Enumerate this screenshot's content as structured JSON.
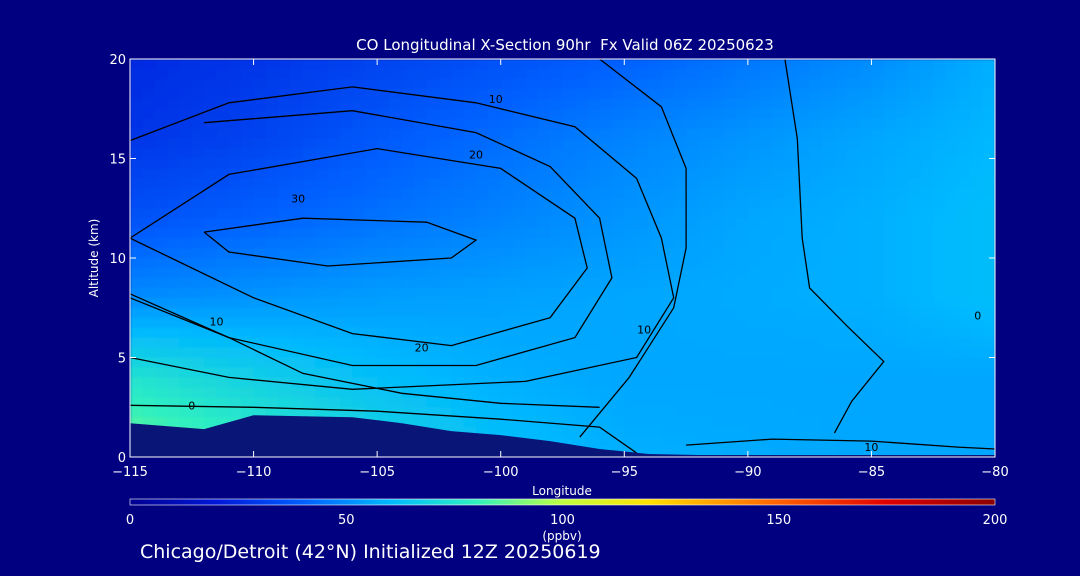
{
  "footer_text": "Chicago/Detroit (42°N) Initialized 12Z 20250619",
  "colors": {
    "background": "#000080",
    "foreground": "#ffffff",
    "terrain": "#0a1578",
    "contour": "#000000"
  },
  "chart_data": {
    "type": "heatmap",
    "title": "CO Longitudinal X-Section 90hr  Fx Valid 06Z 20250623",
    "xlabel": "Longitude",
    "ylabel": "Altitude (km)",
    "xlim": [
      -115,
      -80
    ],
    "ylim": [
      0,
      20
    ],
    "x_ticks": [
      -115,
      -110,
      -105,
      -100,
      -95,
      -90,
      -85,
      -80
    ],
    "x_tick_labels": [
      "−115",
      "−110",
      "−105",
      "−100",
      "−95",
      "−90",
      "−85",
      "−80"
    ],
    "y_ticks": [
      0,
      5,
      10,
      15,
      20
    ],
    "y_tick_labels": [
      "0",
      "5",
      "10",
      "15",
      "20"
    ],
    "colorbar": {
      "range": [
        0,
        200
      ],
      "ticks": [
        0,
        50,
        100,
        150,
        200
      ],
      "tick_labels": [
        "0",
        "50",
        "100",
        "150",
        "200"
      ],
      "unit": "(ppbv)",
      "stops": [
        {
          "v": 0,
          "c": "#000090"
        },
        {
          "v": 20,
          "c": "#0018d8"
        },
        {
          "v": 40,
          "c": "#0060ff"
        },
        {
          "v": 60,
          "c": "#00b8ff"
        },
        {
          "v": 80,
          "c": "#30f0c0"
        },
        {
          "v": 100,
          "c": "#c0ff40"
        },
        {
          "v": 120,
          "c": "#ffe000"
        },
        {
          "v": 150,
          "c": "#ff6000"
        },
        {
          "v": 175,
          "c": "#e00000"
        },
        {
          "v": 200,
          "c": "#8a0000"
        }
      ]
    },
    "base_field_ppbv": [
      [
        25,
        28,
        32,
        36,
        40,
        45,
        50,
        58
      ],
      [
        28,
        32,
        38,
        43,
        48,
        52,
        56,
        60
      ],
      [
        36,
        40,
        44,
        48,
        52,
        56,
        58,
        62
      ],
      [
        50,
        52,
        54,
        55,
        56,
        57,
        58,
        62
      ],
      [
        75,
        68,
        62,
        58,
        56,
        56,
        56,
        56
      ],
      [
        90,
        82,
        72,
        63,
        58,
        57,
        56,
        56
      ]
    ],
    "base_field_altitudes_km": [
      20,
      16,
      12,
      8,
      4,
      0
    ],
    "base_field_longitudes": [
      -115,
      -110,
      -105,
      -100,
      -95,
      -90,
      -85,
      -80
    ],
    "terrain_km": [
      [
        -115,
        1.7
      ],
      [
        -112,
        1.4
      ],
      [
        -110,
        2.1
      ],
      [
        -106,
        2.0
      ],
      [
        -104,
        1.7
      ],
      [
        -102,
        1.3
      ],
      [
        -100,
        1.1
      ],
      [
        -98,
        0.8
      ],
      [
        -96,
        0.4
      ],
      [
        -94,
        0.15
      ],
      [
        -92,
        0.1
      ],
      [
        -80,
        0.1
      ]
    ],
    "contours": [
      {
        "label": "30",
        "label_at": [
          -108.2,
          13.0
        ],
        "points": [
          [
            -112,
            11.3
          ],
          [
            -108,
            12.0
          ],
          [
            -103,
            11.8
          ],
          [
            -101,
            10.9
          ],
          [
            -102,
            10.0
          ],
          [
            -107,
            9.6
          ],
          [
            -111,
            10.3
          ],
          [
            -112,
            11.3
          ]
        ]
      },
      {
        "label": "20",
        "label_at": [
          -103.2,
          5.5
        ],
        "points": [
          [
            -115,
            11.0
          ],
          [
            -111,
            14.2
          ],
          [
            -105,
            15.5
          ],
          [
            -100,
            14.5
          ],
          [
            -97,
            12.0
          ],
          [
            -96.5,
            9.5
          ],
          [
            -98,
            7.0
          ],
          [
            -102,
            5.6
          ],
          [
            -106,
            6.2
          ],
          [
            -110,
            8.0
          ],
          [
            -113,
            9.8
          ],
          [
            -115,
            11.0
          ]
        ]
      },
      {
        "label": "20",
        "label_at": [
          -101.0,
          15.2
        ],
        "points": [
          [
            -112,
            16.8
          ],
          [
            -106,
            17.4
          ],
          [
            -101,
            16.3
          ],
          [
            -98,
            14.6
          ],
          [
            -96,
            12.0
          ],
          [
            -95.5,
            9.0
          ],
          [
            -97,
            6.0
          ],
          [
            -101,
            4.6
          ],
          [
            -106,
            4.6
          ],
          [
            -111,
            6.0
          ],
          [
            -115,
            8.0
          ]
        ]
      },
      {
        "label": "10",
        "label_at": [
          -100.2,
          18.0
        ],
        "points": [
          [
            -115,
            15.9
          ],
          [
            -111,
            17.8
          ],
          [
            -106,
            18.6
          ],
          [
            -101,
            17.8
          ],
          [
            -97,
            16.6
          ],
          [
            -94.5,
            14.0
          ],
          [
            -93.5,
            11.0
          ],
          [
            -93.0,
            8.0
          ],
          [
            -94.5,
            5.0
          ],
          [
            -99,
            3.8
          ],
          [
            -106,
            3.4
          ],
          [
            -111,
            4.0
          ],
          [
            -115,
            5.0
          ]
        ]
      },
      {
        "label": "10",
        "label_at": [
          -94.2,
          6.4
        ],
        "points": [
          [
            -96,
            20
          ],
          [
            -93.5,
            17.6
          ],
          [
            -92.5,
            14.5
          ],
          [
            -92.5,
            10.5
          ],
          [
            -93.0,
            7.5
          ],
          [
            -94.8,
            4.0
          ],
          [
            -96.8,
            1.0
          ]
        ]
      },
      {
        "label": "10",
        "label_at": [
          -111.5,
          6.8
        ],
        "points": [
          [
            -115,
            8.2
          ],
          [
            -111,
            6.0
          ],
          [
            -108,
            4.2
          ],
          [
            -104,
            3.2
          ],
          [
            -100,
            2.7
          ],
          [
            -96,
            2.5
          ]
        ]
      },
      {
        "label": "0",
        "label_at": [
          -80.7,
          7.1
        ],
        "points": [
          [
            -88.5,
            20
          ],
          [
            -88,
            16.0
          ],
          [
            -87.8,
            11.0
          ],
          [
            -87.5,
            8.5
          ],
          [
            -86.0,
            6.6
          ],
          [
            -84.5,
            4.8
          ],
          [
            -85.8,
            2.8
          ],
          [
            -86.5,
            1.2
          ]
        ]
      },
      {
        "label": "0",
        "label_at": [
          -112.5,
          2.6
        ],
        "points": [
          [
            -115,
            2.6
          ],
          [
            -110,
            2.5
          ],
          [
            -105,
            2.3
          ],
          [
            -100,
            1.9
          ],
          [
            -96,
            1.5
          ],
          [
            -94.5,
            0.2
          ]
        ]
      },
      {
        "label": "10",
        "label_at": [
          -85.0,
          0.5
        ],
        "points": [
          [
            -92.5,
            0.6
          ],
          [
            -89,
            0.9
          ],
          [
            -85,
            0.8
          ],
          [
            -81.5,
            0.5
          ],
          [
            -80,
            0.4
          ]
        ]
      }
    ]
  }
}
